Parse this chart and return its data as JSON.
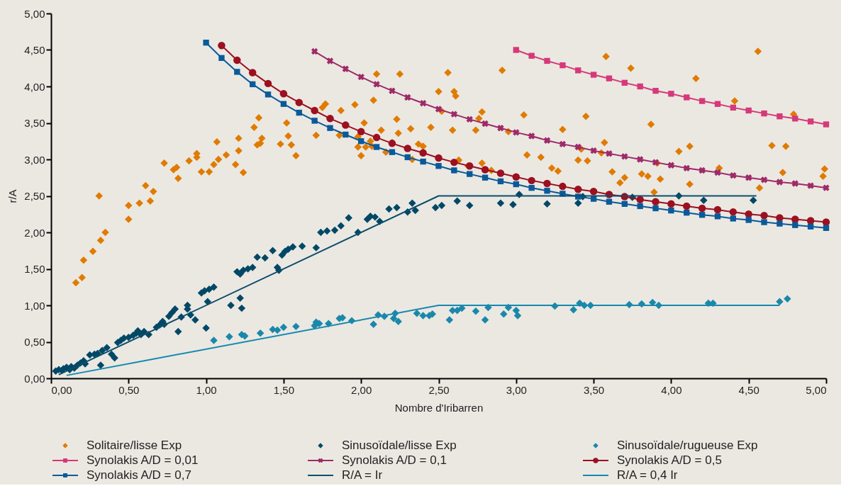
{
  "chart_data": {
    "type": "scatter",
    "xlabel": "Nombre d'Iribarren",
    "ylabel": "r/A",
    "xlim": [
      0,
      5
    ],
    "ylim": [
      0,
      5
    ],
    "xticks": [
      {
        "value": 0,
        "label": "0,00"
      },
      {
        "value": 0.5,
        "label": "0,50"
      },
      {
        "value": 1,
        "label": "1,00"
      },
      {
        "value": 1.5,
        "label": "1,50"
      },
      {
        "value": 2,
        "label": "2,00"
      },
      {
        "value": 2.5,
        "label": "2,50"
      },
      {
        "value": 3,
        "label": "3,00"
      },
      {
        "value": 3.5,
        "label": "3,50"
      },
      {
        "value": 4,
        "label": "4,00"
      },
      {
        "value": 4.5,
        "label": "4,50"
      },
      {
        "value": 5,
        "label": "5,00"
      }
    ],
    "yticks": [
      {
        "value": 0,
        "label": "0,00"
      },
      {
        "value": 0.5,
        "label": "0,50"
      },
      {
        "value": 1,
        "label": "1,00"
      },
      {
        "value": 1.5,
        "label": "1,50"
      },
      {
        "value": 2,
        "label": "2,00"
      },
      {
        "value": 2.5,
        "label": "2,50"
      },
      {
        "value": 3,
        "label": "3,00"
      },
      {
        "value": 3.5,
        "label": "3,50"
      },
      {
        "value": 4,
        "label": "4,00"
      },
      {
        "value": 4.5,
        "label": "4,50"
      },
      {
        "value": 5,
        "label": "5,00"
      }
    ],
    "grid": false,
    "legend": "bottom",
    "series": [
      {
        "name": "Solitaire/lisse  Exp",
        "marker": "diamond",
        "color": "#e07b00",
        "x": [
          0.16,
          0.2,
          0.21,
          0.27,
          0.31,
          0.32,
          0.35,
          0.5,
          0.5,
          0.57,
          0.61,
          0.64,
          0.66,
          0.73,
          0.79,
          0.81,
          0.82,
          0.89,
          0.94,
          0.94,
          0.97,
          1.02,
          1.05,
          1.08,
          1.07,
          1.13,
          1.19,
          1.21,
          1.21,
          1.24,
          1.31,
          1.33,
          1.34,
          1.35,
          1.36,
          1.48,
          1.52,
          1.53,
          1.55,
          1.58,
          1.71,
          1.75,
          1.77,
          1.86,
          1.87,
          1.96,
          1.98,
          1.98,
          2.0,
          2.02,
          2.03,
          2.06,
          2.07,
          2.08,
          2.1,
          2.13,
          2.16,
          2.2,
          2.23,
          2.24,
          2.25,
          2.32,
          2.33,
          2.37,
          2.4,
          2.45,
          2.5,
          2.52,
          2.56,
          2.59,
          2.6,
          2.61,
          2.63,
          2.69,
          2.74,
          2.76,
          2.78,
          2.78,
          2.84,
          2.91,
          2.95,
          3.05,
          3.07,
          3.16,
          3.23,
          3.27,
          3.3,
          3.4,
          3.42,
          3.45,
          3.46,
          3.55,
          3.57,
          3.58,
          3.62,
          3.67,
          3.7,
          3.74,
          3.81,
          3.85,
          3.87,
          3.89,
          3.91,
          3.93,
          4.05,
          4.12,
          4.12,
          4.16,
          4.31,
          4.41,
          4.56,
          4.57,
          4.65,
          4.72,
          4.74,
          4.79,
          4.98,
          4.99
        ],
        "values": [
          1.31,
          1.38,
          1.62,
          1.74,
          2.5,
          1.89,
          2.0,
          2.18,
          2.37,
          2.4,
          2.64,
          2.43,
          2.56,
          2.95,
          2.86,
          2.89,
          2.74,
          2.98,
          3.08,
          3.03,
          2.83,
          2.83,
          2.93,
          3.0,
          3.24,
          3.06,
          2.93,
          3.29,
          3.12,
          2.82,
          3.44,
          3.2,
          3.57,
          3.22,
          3.29,
          3.21,
          3.5,
          3.32,
          3.2,
          3.05,
          3.33,
          3.71,
          3.76,
          3.33,
          3.67,
          3.75,
          3.31,
          3.17,
          3.05,
          3.5,
          3.17,
          3.25,
          3.18,
          3.81,
          4.17,
          3.4,
          3.1,
          3.23,
          3.55,
          3.36,
          4.17,
          3.42,
          3.0,
          3.21,
          3.18,
          3.44,
          3.93,
          3.66,
          4.19,
          3.4,
          3.93,
          3.87,
          2.99,
          2.91,
          3.4,
          3.56,
          3.65,
          2.95,
          2.85,
          4.22,
          3.38,
          3.61,
          3.06,
          3.03,
          2.88,
          2.84,
          3.41,
          2.99,
          3.14,
          3.59,
          2.98,
          3.09,
          3.23,
          4.41,
          2.83,
          2.68,
          2.75,
          4.25,
          2.8,
          2.77,
          3.48,
          2.55,
          2.95,
          2.73,
          3.11,
          3.18,
          2.66,
          4.11,
          2.88,
          3.8,
          4.48,
          2.61,
          3.19,
          2.82,
          3.18,
          3.62,
          2.77,
          2.87
        ]
      },
      {
        "name": "Sinusoïdale/lisse  Exp",
        "marker": "diamond",
        "color": "#004866",
        "x": [
          0.03,
          0.05,
          0.07,
          0.08,
          0.1,
          0.12,
          0.13,
          0.15,
          0.17,
          0.19,
          0.21,
          0.22,
          0.25,
          0.28,
          0.3,
          0.32,
          0.33,
          0.36,
          0.39,
          0.41,
          0.43,
          0.45,
          0.47,
          0.5,
          0.53,
          0.55,
          0.56,
          0.58,
          0.6,
          0.63,
          0.68,
          0.7,
          0.72,
          0.73,
          0.76,
          0.78,
          0.8,
          0.82,
          0.84,
          0.88,
          0.88,
          0.9,
          0.93,
          0.97,
          0.99,
          1.01,
          1.02,
          1.05,
          1.0,
          1.16,
          1.2,
          1.22,
          1.24,
          1.22,
          1.23,
          1.27,
          1.3,
          1.33,
          1.38,
          1.43,
          1.46,
          1.47,
          1.49,
          1.51,
          1.53,
          1.56,
          1.62,
          1.71,
          1.74,
          1.78,
          1.83,
          1.87,
          1.92,
          1.98,
          2.04,
          2.06,
          2.09,
          2.12,
          2.18,
          2.23,
          2.3,
          2.33,
          2.35,
          2.48,
          2.52,
          2.62,
          2.7,
          2.9,
          2.98,
          3.02,
          3.2,
          3.4,
          3.43,
          3.75,
          4.05,
          4.21,
          4.53
        ],
        "values": [
          0.1,
          0.12,
          0.11,
          0.13,
          0.15,
          0.12,
          0.16,
          0.14,
          0.18,
          0.21,
          0.24,
          0.2,
          0.32,
          0.33,
          0.34,
          0.18,
          0.38,
          0.42,
          0.33,
          0.28,
          0.49,
          0.52,
          0.55,
          0.56,
          0.59,
          0.62,
          0.65,
          0.6,
          0.64,
          0.6,
          0.7,
          0.73,
          0.78,
          0.74,
          0.85,
          0.9,
          0.95,
          0.64,
          0.84,
          0.95,
          1.0,
          0.87,
          0.8,
          1.17,
          1.2,
          1.05,
          1.22,
          1.25,
          0.69,
          1.0,
          1.46,
          1.43,
          1.48,
          1.1,
          0.96,
          1.5,
          1.52,
          1.66,
          1.65,
          1.75,
          1.52,
          1.48,
          1.69,
          1.74,
          1.77,
          1.8,
          1.81,
          1.79,
          2.0,
          2.02,
          2.03,
          2.09,
          2.2,
          2.0,
          2.18,
          2.22,
          2.21,
          2.15,
          2.32,
          2.34,
          2.28,
          2.4,
          2.3,
          2.34,
          2.37,
          2.43,
          2.37,
          2.4,
          2.38,
          2.52,
          2.39,
          2.4,
          2.49,
          2.48,
          2.5,
          2.44,
          2.44
        ]
      },
      {
        "name": "Sinusoïdale/rugueuse  Exp",
        "marker": "diamond",
        "color": "#1a88aa",
        "x": [
          1.05,
          1.15,
          1.23,
          1.25,
          1.35,
          1.43,
          1.46,
          1.5,
          1.58,
          1.7,
          1.71,
          1.73,
          1.79,
          1.86,
          1.88,
          1.94,
          2.08,
          2.11,
          2.15,
          2.21,
          2.22,
          2.24,
          2.36,
          2.4,
          2.44,
          2.46,
          2.57,
          2.59,
          2.62,
          2.65,
          2.74,
          2.8,
          2.82,
          2.92,
          2.95,
          3.0,
          3.01,
          3.25,
          3.37,
          3.41,
          3.44,
          3.48,
          3.73,
          3.81,
          3.88,
          3.92,
          4.24,
          4.27,
          4.7,
          4.75
        ],
        "values": [
          0.52,
          0.57,
          0.6,
          0.58,
          0.62,
          0.67,
          0.66,
          0.7,
          0.71,
          0.72,
          0.77,
          0.75,
          0.75,
          0.82,
          0.83,
          0.79,
          0.74,
          0.87,
          0.85,
          0.82,
          0.89,
          0.78,
          0.89,
          0.86,
          0.86,
          0.88,
          0.8,
          0.93,
          0.93,
          0.96,
          0.92,
          0.8,
          0.97,
          0.88,
          0.97,
          0.93,
          0.86,
          0.99,
          0.94,
          1.03,
          1.0,
          1.0,
          1.01,
          1.02,
          1.04,
          1.0,
          1.03,
          1.03,
          1.05,
          1.09
        ]
      },
      {
        "name": "Synolakis  A/D = 0,01",
        "type": "line",
        "line_style": "solid",
        "marker": "square",
        "color": "#d6397a",
        "x": [
          3.0,
          3.1,
          3.2,
          3.3,
          3.4,
          3.5,
          3.6,
          3.7,
          3.8,
          3.9,
          4.0,
          4.1,
          4.2,
          4.3,
          4.4,
          4.5,
          4.6,
          4.7,
          4.8,
          4.9,
          5.0
        ],
        "values": [
          4.5,
          4.42,
          4.35,
          4.29,
          4.22,
          4.16,
          4.11,
          4.05,
          4.0,
          3.94,
          3.9,
          3.85,
          3.8,
          3.76,
          3.71,
          3.67,
          3.63,
          3.59,
          3.56,
          3.52,
          3.48
        ]
      },
      {
        "name": "Synolakis  A/D = 0,1",
        "type": "line",
        "line_style": "solid",
        "marker": "cross",
        "color": "#9e2a68",
        "x": [
          1.7,
          1.8,
          1.9,
          2.0,
          2.1,
          2.2,
          2.3,
          2.4,
          2.5,
          2.6,
          2.7,
          2.8,
          2.9,
          3.0,
          3.1,
          3.2,
          3.3,
          3.4,
          3.5,
          3.6,
          3.7,
          3.8,
          3.9,
          4.0,
          4.1,
          4.2,
          4.3,
          4.4,
          4.5,
          4.6,
          4.7,
          4.8,
          4.9,
          5.0
        ],
        "values": [
          4.48,
          4.35,
          4.24,
          4.13,
          4.03,
          3.94,
          3.85,
          3.77,
          3.69,
          3.62,
          3.55,
          3.49,
          3.43,
          3.37,
          3.32,
          3.26,
          3.21,
          3.17,
          3.12,
          3.08,
          3.04,
          3.0,
          2.96,
          2.92,
          2.88,
          2.85,
          2.82,
          2.78,
          2.75,
          2.72,
          2.69,
          2.67,
          2.64,
          2.61
        ]
      },
      {
        "name": "Synolakis  A/D = 0,5",
        "type": "line",
        "line_style": "solid",
        "marker": "circle",
        "color": "#9c1020",
        "x": [
          1.1,
          1.2,
          1.3,
          1.4,
          1.5,
          1.6,
          1.7,
          1.8,
          1.9,
          2.0,
          2.1,
          2.2,
          2.3,
          2.4,
          2.5,
          2.6,
          2.7,
          2.8,
          2.9,
          3.0,
          3.1,
          3.2,
          3.3,
          3.4,
          3.5,
          3.6,
          3.7,
          3.8,
          3.9,
          4.0,
          4.1,
          4.2,
          4.3,
          4.4,
          4.5,
          4.6,
          4.7,
          4.8,
          4.9,
          5.0
        ],
        "values": [
          4.56,
          4.36,
          4.19,
          4.04,
          3.9,
          3.78,
          3.67,
          3.56,
          3.47,
          3.38,
          3.3,
          3.22,
          3.15,
          3.09,
          3.02,
          2.96,
          2.91,
          2.86,
          2.81,
          2.76,
          2.71,
          2.67,
          2.63,
          2.59,
          2.56,
          2.52,
          2.49,
          2.45,
          2.42,
          2.39,
          2.36,
          2.33,
          2.31,
          2.28,
          2.25,
          2.23,
          2.2,
          2.18,
          2.16,
          2.14
        ]
      },
      {
        "name": "Synolakis  A/D = 0,7",
        "type": "line",
        "line_style": "solid",
        "marker": "square",
        "color": "#0a5a9a",
        "x": [
          1.0,
          1.1,
          1.2,
          1.3,
          1.4,
          1.5,
          1.6,
          1.7,
          1.8,
          1.9,
          2.0,
          2.1,
          2.2,
          2.3,
          2.4,
          2.5,
          2.6,
          2.7,
          2.8,
          2.9,
          3.0,
          3.1,
          3.2,
          3.3,
          3.4,
          3.5,
          3.6,
          3.7,
          3.8,
          3.9,
          4.0,
          4.1,
          4.2,
          4.3,
          4.4,
          4.5,
          4.6,
          4.7,
          4.8,
          4.9,
          5.0
        ],
        "values": [
          4.6,
          4.39,
          4.2,
          4.03,
          3.89,
          3.76,
          3.64,
          3.53,
          3.43,
          3.34,
          3.25,
          3.17,
          3.1,
          3.03,
          2.97,
          2.91,
          2.85,
          2.8,
          2.75,
          2.7,
          2.66,
          2.61,
          2.57,
          2.53,
          2.49,
          2.46,
          2.42,
          2.39,
          2.36,
          2.33,
          2.3,
          2.27,
          2.24,
          2.22,
          2.19,
          2.17,
          2.14,
          2.12,
          2.1,
          2.08,
          2.06
        ]
      },
      {
        "name": "R/A = Ir",
        "type": "line",
        "line_style": "solid",
        "marker": "none",
        "color": "#0d4e6c",
        "x": [
          0.05,
          2.5,
          4.55
        ],
        "values": [
          0.05,
          2.5,
          2.5
        ]
      },
      {
        "name": "R/A = 0,4 Ir",
        "type": "line",
        "line_style": "solid",
        "marker": "none",
        "color": "#1689b0",
        "x": [
          0.1,
          2.5,
          4.7
        ],
        "values": [
          0.04,
          1.0,
          1.0
        ]
      }
    ]
  }
}
